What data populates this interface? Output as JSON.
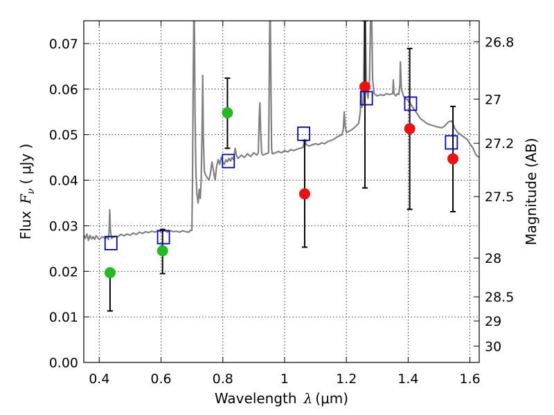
{
  "chart_data": {
    "type": "scatter",
    "xlabel": {
      "prefix": "Wavelength",
      "symbol": "λ",
      "unit": "(μm)"
    },
    "ylabel": {
      "prefix": "Flux",
      "symbol": "F",
      "subscript": "ν",
      "unit": "( μJy )"
    },
    "y2label": "Magnitude (AB)",
    "xlim": [
      0.35,
      1.63
    ],
    "ylim": [
      0.0,
      0.075
    ],
    "grid": true,
    "x_ticks": [
      0.4,
      0.6,
      0.8,
      1.0,
      1.2,
      1.4,
      1.6
    ],
    "x_tick_labels": [
      "0.4",
      "0.6",
      "0.8",
      "1",
      "1.2",
      "1.4",
      "1.6"
    ],
    "y_ticks": [
      0.0,
      0.01,
      0.02,
      0.03,
      0.04,
      0.05,
      0.06,
      0.07
    ],
    "y_tick_labels": [
      "0.00",
      "0.01",
      "0.02",
      "0.03",
      "0.04",
      "0.05",
      "0.06",
      "0.07"
    ],
    "y2_ticks": [
      {
        "label": "26.8",
        "flux": 0.0704
      },
      {
        "label": "27",
        "flux": 0.0578
      },
      {
        "label": "27.2",
        "flux": 0.0481
      },
      {
        "label": "27.5",
        "flux": 0.0364
      },
      {
        "label": "28",
        "flux": 0.0229
      },
      {
        "label": "28.5",
        "flux": 0.0144
      },
      {
        "label": "29",
        "flux": 0.0091
      },
      {
        "label": "30",
        "flux": 0.0036
      }
    ],
    "colors": {
      "green": "#22bb22",
      "red": "#ee1111",
      "model": "#0000cc",
      "spectrum": "#808080"
    },
    "series": [
      {
        "kind": "green-points",
        "points": [
          {
            "x": 0.435,
            "y": 0.0197,
            "err": [
              0.0113,
              0.0197
            ]
          },
          {
            "x": 0.605,
            "y": 0.0245,
            "err": [
              0.0195,
              0.0292
            ]
          },
          {
            "x": 0.815,
            "y": 0.0548,
            "err": [
              0.047,
              0.0624
            ]
          }
        ]
      },
      {
        "kind": "red-points",
        "points": [
          {
            "x": 1.065,
            "y": 0.037,
            "err": [
              0.0253,
              0.0487
            ]
          },
          {
            "x": 1.26,
            "y": 0.0605,
            "err": [
              0.0383,
              0.075
            ]
          },
          {
            "x": 1.405,
            "y": 0.0513,
            "err": [
              0.0336,
              0.0689
            ]
          },
          {
            "x": 1.545,
            "y": 0.0447,
            "err": [
              0.0331,
              0.0562
            ]
          }
        ]
      },
      {
        "kind": "model-squares",
        "points": [
          {
            "x": 0.438,
            "y": 0.0262
          },
          {
            "x": 0.608,
            "y": 0.0275
          },
          {
            "x": 0.818,
            "y": 0.0442
          },
          {
            "x": 1.062,
            "y": 0.0502
          },
          {
            "x": 1.265,
            "y": 0.058
          },
          {
            "x": 1.408,
            "y": 0.0568
          },
          {
            "x": 1.54,
            "y": 0.0483
          }
        ]
      }
    ],
    "spectrum": [
      [
        0.35,
        0.028
      ],
      [
        0.355,
        0.0272
      ],
      [
        0.36,
        0.0282
      ],
      [
        0.365,
        0.0268
      ],
      [
        0.37,
        0.0279
      ],
      [
        0.375,
        0.0271
      ],
      [
        0.38,
        0.0276
      ],
      [
        0.385,
        0.027
      ],
      [
        0.39,
        0.0278
      ],
      [
        0.4,
        0.027
      ],
      [
        0.41,
        0.0276
      ],
      [
        0.42,
        0.0272
      ],
      [
        0.425,
        0.0275
      ],
      [
        0.43,
        0.027
      ],
      [
        0.432,
        0.0292
      ],
      [
        0.434,
        0.0335
      ],
      [
        0.436,
        0.029
      ],
      [
        0.44,
        0.0272
      ],
      [
        0.45,
        0.0277
      ],
      [
        0.46,
        0.0276
      ],
      [
        0.47,
        0.0281
      ],
      [
        0.48,
        0.0278
      ],
      [
        0.49,
        0.0282
      ],
      [
        0.5,
        0.0279
      ],
      [
        0.51,
        0.0284
      ],
      [
        0.52,
        0.0281
      ],
      [
        0.53,
        0.0286
      ],
      [
        0.54,
        0.0283
      ],
      [
        0.55,
        0.0287
      ],
      [
        0.56,
        0.0285
      ],
      [
        0.57,
        0.0288
      ],
      [
        0.58,
        0.0286
      ],
      [
        0.59,
        0.0289
      ],
      [
        0.6,
        0.0287
      ],
      [
        0.61,
        0.029
      ],
      [
        0.62,
        0.0286
      ],
      [
        0.63,
        0.0289
      ],
      [
        0.64,
        0.0287
      ],
      [
        0.65,
        0.0288
      ],
      [
        0.66,
        0.0286
      ],
      [
        0.67,
        0.0289
      ],
      [
        0.68,
        0.0287
      ],
      [
        0.69,
        0.0286
      ],
      [
        0.695,
        0.029
      ],
      [
        0.7,
        0.029
      ],
      [
        0.702,
        0.04
      ],
      [
        0.704,
        0.06
      ],
      [
        0.706,
        0.075
      ],
      [
        0.708,
        0.075
      ],
      [
        0.71,
        0.055
      ],
      [
        0.713,
        0.042
      ],
      [
        0.716,
        0.037
      ],
      [
        0.72,
        0.035
      ],
      [
        0.724,
        0.038
      ],
      [
        0.727,
        0.036
      ],
      [
        0.73,
        0.04
      ],
      [
        0.733,
        0.052
      ],
      [
        0.735,
        0.063
      ],
      [
        0.737,
        0.05
      ],
      [
        0.74,
        0.042
      ],
      [
        0.745,
        0.041
      ],
      [
        0.75,
        0.0405
      ],
      [
        0.755,
        0.04
      ],
      [
        0.76,
        0.0415
      ],
      [
        0.765,
        0.044
      ],
      [
        0.77,
        0.042
      ],
      [
        0.775,
        0.04
      ],
      [
        0.78,
        0.043
      ],
      [
        0.785,
        0.0445
      ],
      [
        0.79,
        0.0435
      ],
      [
        0.795,
        0.045
      ],
      [
        0.8,
        0.044
      ],
      [
        0.805,
        0.0435
      ],
      [
        0.81,
        0.0445
      ],
      [
        0.815,
        0.044
      ],
      [
        0.82,
        0.0448
      ],
      [
        0.825,
        0.0442
      ],
      [
        0.83,
        0.045
      ],
      [
        0.835,
        0.0445
      ],
      [
        0.84,
        0.047
      ],
      [
        0.845,
        0.0452
      ],
      [
        0.85,
        0.0448
      ],
      [
        0.86,
        0.0455
      ],
      [
        0.87,
        0.045
      ],
      [
        0.88,
        0.0458
      ],
      [
        0.89,
        0.0452
      ],
      [
        0.9,
        0.046
      ],
      [
        0.91,
        0.0455
      ],
      [
        0.915,
        0.046
      ],
      [
        0.918,
        0.054
      ],
      [
        0.92,
        0.057
      ],
      [
        0.923,
        0.05
      ],
      [
        0.926,
        0.0458
      ],
      [
        0.93,
        0.0455
      ],
      [
        0.94,
        0.0458
      ],
      [
        0.948,
        0.046
      ],
      [
        0.95,
        0.06
      ],
      [
        0.952,
        0.075
      ],
      [
        0.954,
        0.075
      ],
      [
        0.956,
        0.06
      ],
      [
        0.958,
        0.047
      ],
      [
        0.96,
        0.0458
      ],
      [
        0.97,
        0.046
      ],
      [
        0.98,
        0.0463
      ],
      [
        0.99,
        0.046
      ],
      [
        1.0,
        0.0465
      ],
      [
        1.01,
        0.0462
      ],
      [
        1.02,
        0.0467
      ],
      [
        1.03,
        0.0465
      ],
      [
        1.04,
        0.0468
      ],
      [
        1.05,
        0.047
      ],
      [
        1.06,
        0.0472
      ],
      [
        1.065,
        0.049
      ],
      [
        1.07,
        0.0478
      ],
      [
        1.08,
        0.0475
      ],
      [
        1.09,
        0.0478
      ],
      [
        1.1,
        0.048
      ],
      [
        1.11,
        0.0478
      ],
      [
        1.12,
        0.0482
      ],
      [
        1.13,
        0.048
      ],
      [
        1.14,
        0.0485
      ],
      [
        1.15,
        0.0487
      ],
      [
        1.16,
        0.049
      ],
      [
        1.17,
        0.0495
      ],
      [
        1.18,
        0.0498
      ],
      [
        1.185,
        0.05
      ],
      [
        1.19,
        0.051
      ],
      [
        1.193,
        0.055
      ],
      [
        1.196,
        0.052
      ],
      [
        1.2,
        0.0505
      ],
      [
        1.21,
        0.0508
      ],
      [
        1.22,
        0.0512
      ],
      [
        1.23,
        0.0518
      ],
      [
        1.24,
        0.0525
      ],
      [
        1.245,
        0.055
      ],
      [
        1.248,
        0.06
      ],
      [
        1.25,
        0.056
      ],
      [
        1.255,
        0.057
      ],
      [
        1.258,
        0.075
      ],
      [
        1.262,
        0.075
      ],
      [
        1.265,
        0.06
      ],
      [
        1.27,
        0.058
      ],
      [
        1.275,
        0.062
      ],
      [
        1.278,
        0.075
      ],
      [
        1.282,
        0.075
      ],
      [
        1.285,
        0.062
      ],
      [
        1.29,
        0.059
      ],
      [
        1.3,
        0.0585
      ],
      [
        1.31,
        0.0588
      ],
      [
        1.32,
        0.0586
      ],
      [
        1.33,
        0.059
      ],
      [
        1.34,
        0.0588
      ],
      [
        1.35,
        0.059
      ],
      [
        1.352,
        0.062
      ],
      [
        1.354,
        0.059
      ],
      [
        1.36,
        0.0585
      ],
      [
        1.365,
        0.059
      ],
      [
        1.37,
        0.0588
      ],
      [
        1.373,
        0.061
      ],
      [
        1.375,
        0.066
      ],
      [
        1.378,
        0.06
      ],
      [
        1.385,
        0.0585
      ],
      [
        1.39,
        0.058
      ],
      [
        1.4,
        0.0575
      ],
      [
        1.41,
        0.0565
      ],
      [
        1.42,
        0.0555
      ],
      [
        1.43,
        0.0545
      ],
      [
        1.44,
        0.0535
      ],
      [
        1.45,
        0.053
      ],
      [
        1.46,
        0.0525
      ],
      [
        1.47,
        0.0522
      ],
      [
        1.48,
        0.052
      ],
      [
        1.49,
        0.0518
      ],
      [
        1.5,
        0.0516
      ],
      [
        1.51,
        0.0515
      ],
      [
        1.52,
        0.052
      ],
      [
        1.53,
        0.0528
      ],
      [
        1.54,
        0.053
      ],
      [
        1.545,
        0.0525
      ],
      [
        1.55,
        0.0515
      ],
      [
        1.56,
        0.0505
      ],
      [
        1.57,
        0.05
      ],
      [
        1.58,
        0.0495
      ],
      [
        1.59,
        0.049
      ],
      [
        1.6,
        0.048
      ],
      [
        1.61,
        0.047
      ],
      [
        1.62,
        0.0455
      ],
      [
        1.63,
        0.045
      ]
    ]
  }
}
